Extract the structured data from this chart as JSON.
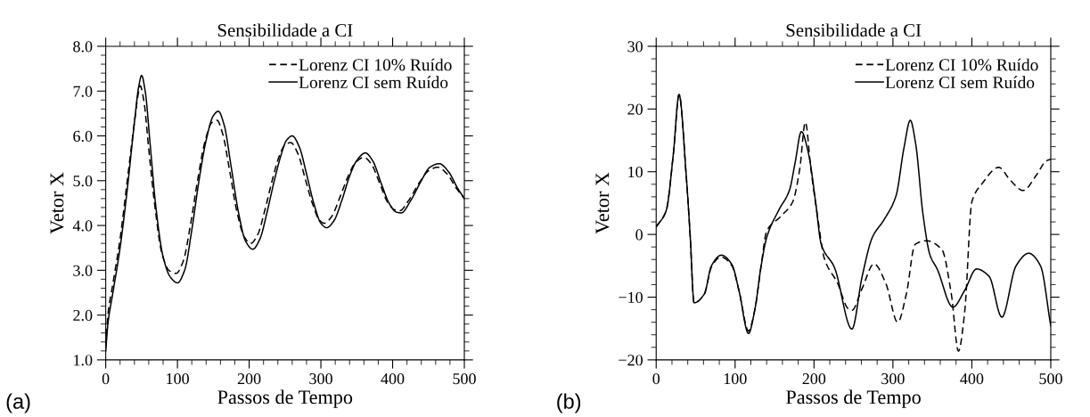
{
  "chart_data": [
    {
      "type": "line",
      "title": "Sensibilidade a CI",
      "xlabel": "Passos de Tempo",
      "ylabel": "Vetor X",
      "xlim": [
        0,
        500
      ],
      "xticks": [
        0,
        100,
        200,
        300,
        400,
        500
      ],
      "ylim": [
        1.0,
        8.0
      ],
      "yticks": [
        {
          "value": 1.0,
          "label": "1.0"
        },
        {
          "value": 2.0,
          "label": "2.0"
        },
        {
          "value": 3.0,
          "label": "3.0"
        },
        {
          "value": 4.0,
          "label": "4.0"
        },
        {
          "value": 5.0,
          "label": "5.0"
        },
        {
          "value": 6.0,
          "label": "6.0"
        },
        {
          "value": 7.0,
          "label": "7.0"
        },
        {
          "value": 8.0,
          "label": "8.0"
        }
      ],
      "legend": "top right",
      "annotations": [
        "(a)"
      ],
      "series": [
        {
          "name": "Lorenz CI 10% Ruído",
          "color": "#000000",
          "line_style": "dashed",
          "x": [
            0,
            3,
            10,
            20,
            30,
            40,
            46,
            48,
            53,
            60,
            68,
            78,
            88,
            98,
            108,
            118,
            128,
            138,
            148,
            155,
            163,
            173,
            183,
            193,
            202,
            212,
            222,
            232,
            242,
            250,
            258,
            268,
            278,
            288,
            298,
            305,
            315,
            327,
            338,
            348,
            360,
            370,
            383,
            393,
            403,
            410,
            422,
            437,
            450,
            463,
            476,
            488,
            500
          ],
          "values": [
            1.3,
            2.0,
            2.7,
            3.7,
            5.0,
            6.3,
            7.0,
            7.12,
            6.8,
            5.7,
            4.5,
            3.4,
            3.0,
            2.93,
            3.2,
            4.0,
            5.0,
            5.85,
            6.3,
            6.35,
            6.05,
            5.2,
            4.3,
            3.75,
            3.6,
            3.8,
            4.35,
            5.0,
            5.55,
            5.8,
            5.85,
            5.6,
            5.05,
            4.5,
            4.12,
            4.05,
            4.2,
            4.65,
            5.1,
            5.4,
            5.52,
            5.38,
            4.9,
            4.52,
            4.35,
            4.33,
            4.55,
            4.95,
            5.22,
            5.3,
            5.15,
            4.85,
            4.6
          ]
        },
        {
          "name": "Lorenz CI sem Ruído",
          "color": "#000000",
          "line_style": "solid",
          "x": [
            0,
            3,
            10,
            20,
            30,
            40,
            46,
            50,
            55,
            62,
            70,
            80,
            90,
            100,
            110,
            120,
            130,
            140,
            150,
            157,
            165,
            175,
            185,
            195,
            205,
            215,
            225,
            235,
            245,
            252,
            260,
            270,
            280,
            290,
            300,
            308,
            318,
            330,
            340,
            350,
            362,
            372,
            385,
            395,
            405,
            412,
            425,
            440,
            452,
            465,
            478,
            490,
            500
          ],
          "values": [
            1.2,
            1.8,
            2.5,
            3.5,
            4.8,
            6.3,
            7.1,
            7.35,
            7.0,
            5.8,
            4.4,
            3.3,
            2.85,
            2.72,
            3.0,
            3.9,
            5.0,
            5.9,
            6.45,
            6.55,
            6.25,
            5.3,
            4.3,
            3.65,
            3.47,
            3.7,
            4.3,
            5.0,
            5.6,
            5.9,
            6.0,
            5.75,
            5.15,
            4.5,
            4.05,
            3.95,
            4.1,
            4.6,
            5.1,
            5.45,
            5.62,
            5.45,
            4.9,
            4.5,
            4.3,
            4.28,
            4.55,
            5.0,
            5.3,
            5.38,
            5.2,
            4.85,
            4.6
          ]
        }
      ]
    },
    {
      "type": "line",
      "title": "Sensibilidade a CI",
      "xlabel": "Passos de Tempo",
      "ylabel": "Vetor X",
      "xlim": [
        0,
        500
      ],
      "xticks": [
        0,
        100,
        200,
        300,
        400,
        500
      ],
      "ylim": [
        -20,
        30
      ],
      "yticks": [
        {
          "value": -20,
          "label": "−20"
        },
        {
          "value": -10,
          "label": "−10"
        },
        0,
        10,
        20,
        30
      ],
      "legend": "top right",
      "annotations": [
        "(b)"
      ],
      "series": [
        {
          "name": "Lorenz CI 10% Ruído",
          "color": "#000000",
          "line_style": "dashed",
          "x": [
            0,
            12.7,
            21.8,
            29,
            38,
            43,
            48,
            61,
            70,
            82,
            96,
            105,
            117,
            125,
            133,
            140,
            158,
            173,
            182,
            189,
            196,
            205,
            213,
            230,
            243,
            248,
            261,
            276,
            291,
            306,
            317,
            328,
            342,
            362,
            374,
            383,
            391,
            400,
            413,
            434,
            449,
            465,
            482,
            494,
            500
          ],
          "values": [
            1.2,
            3.8,
            12.9,
            22.3,
            9.5,
            0,
            -10.9,
            -9.5,
            -5.2,
            -3.6,
            -5.0,
            -9.0,
            -15.4,
            -12.0,
            -5.0,
            0.5,
            2.9,
            5.2,
            10.5,
            17.9,
            10.5,
            2.4,
            -3.8,
            -7.8,
            -11.8,
            -12.1,
            -8.6,
            -4.7,
            -7.8,
            -14.0,
            -9.5,
            -1.6,
            -1.0,
            -2.4,
            -9.5,
            -18.6,
            -12.3,
            5.2,
            8.1,
            10.7,
            8.6,
            7.0,
            9.5,
            11.7,
            12.0
          ]
        },
        {
          "name": "Lorenz CI sem Ruído",
          "color": "#000000",
          "line_style": "solid",
          "x": [
            0,
            12.7,
            21.8,
            29,
            38,
            43,
            48,
            61,
            70,
            82.6,
            96,
            105,
            117,
            125,
            133,
            140,
            155,
            169,
            176,
            184,
            193,
            202,
            209,
            226,
            248,
            261,
            274,
            289,
            304,
            314,
            322,
            329,
            338,
            347,
            356,
            376,
            391,
            406,
            422,
            438,
            456,
            472,
            487,
            500
          ],
          "values": [
            1.2,
            3.8,
            12.9,
            22.3,
            9.5,
            0,
            -10.9,
            -9.5,
            -5.0,
            -3.3,
            -4.8,
            -9.0,
            -15.8,
            -12.0,
            -5.0,
            -0.5,
            3.8,
            7.1,
            11.4,
            16.4,
            12.9,
            5.2,
            -1.5,
            -5.3,
            -15.1,
            -6.7,
            -0.45,
            2.4,
            6.2,
            13.8,
            18.2,
            14.3,
            3.3,
            -3.3,
            -5.5,
            -11.6,
            -8.9,
            -5.5,
            -6.7,
            -13.2,
            -5.0,
            -3.0,
            -5.0,
            -14.6
          ]
        }
      ]
    }
  ]
}
